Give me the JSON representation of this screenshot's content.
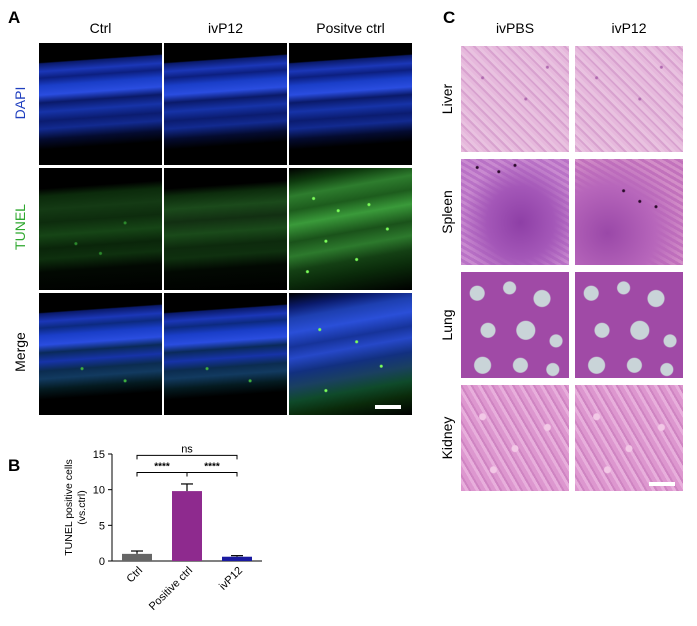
{
  "panel_labels": {
    "a": "A",
    "b": "B",
    "c": "C"
  },
  "panel_a": {
    "columns": [
      "Ctrl",
      "ivP12",
      "Positve ctrl"
    ],
    "rows": [
      {
        "label": "DAPI",
        "color": "#1f3fbf"
      },
      {
        "label": "TUNEL",
        "color": "#2fa82f"
      },
      {
        "label": "Merge",
        "color": "#000000"
      }
    ]
  },
  "panel_c": {
    "columns": [
      "ivPBS",
      "ivP12"
    ],
    "rows": [
      "Liver",
      "Spleen",
      "Lung",
      "Kidney"
    ]
  },
  "chart_data": {
    "type": "bar",
    "categories": [
      "Ctrl",
      "Positive ctrl",
      "ivP12"
    ],
    "values": [
      1.0,
      9.8,
      0.6
    ],
    "errors": [
      0.4,
      1.0,
      0.15
    ],
    "colors": [
      "#666666",
      "#8e2a8e",
      "#1a1aa0"
    ],
    "ylabel": "TUNEL positive cells\n(vs.ctrl)",
    "ylabel_lines": [
      "TUNEL positive cells",
      "(vs.ctrl)"
    ],
    "ylim": [
      0,
      15
    ],
    "yticks": [
      0,
      5,
      10,
      15
    ],
    "significance": [
      {
        "label": "ns",
        "from": 0,
        "to": 2
      },
      {
        "label": "****",
        "from": 0,
        "to": 1
      },
      {
        "label": "****",
        "from": 1,
        "to": 2
      }
    ]
  }
}
